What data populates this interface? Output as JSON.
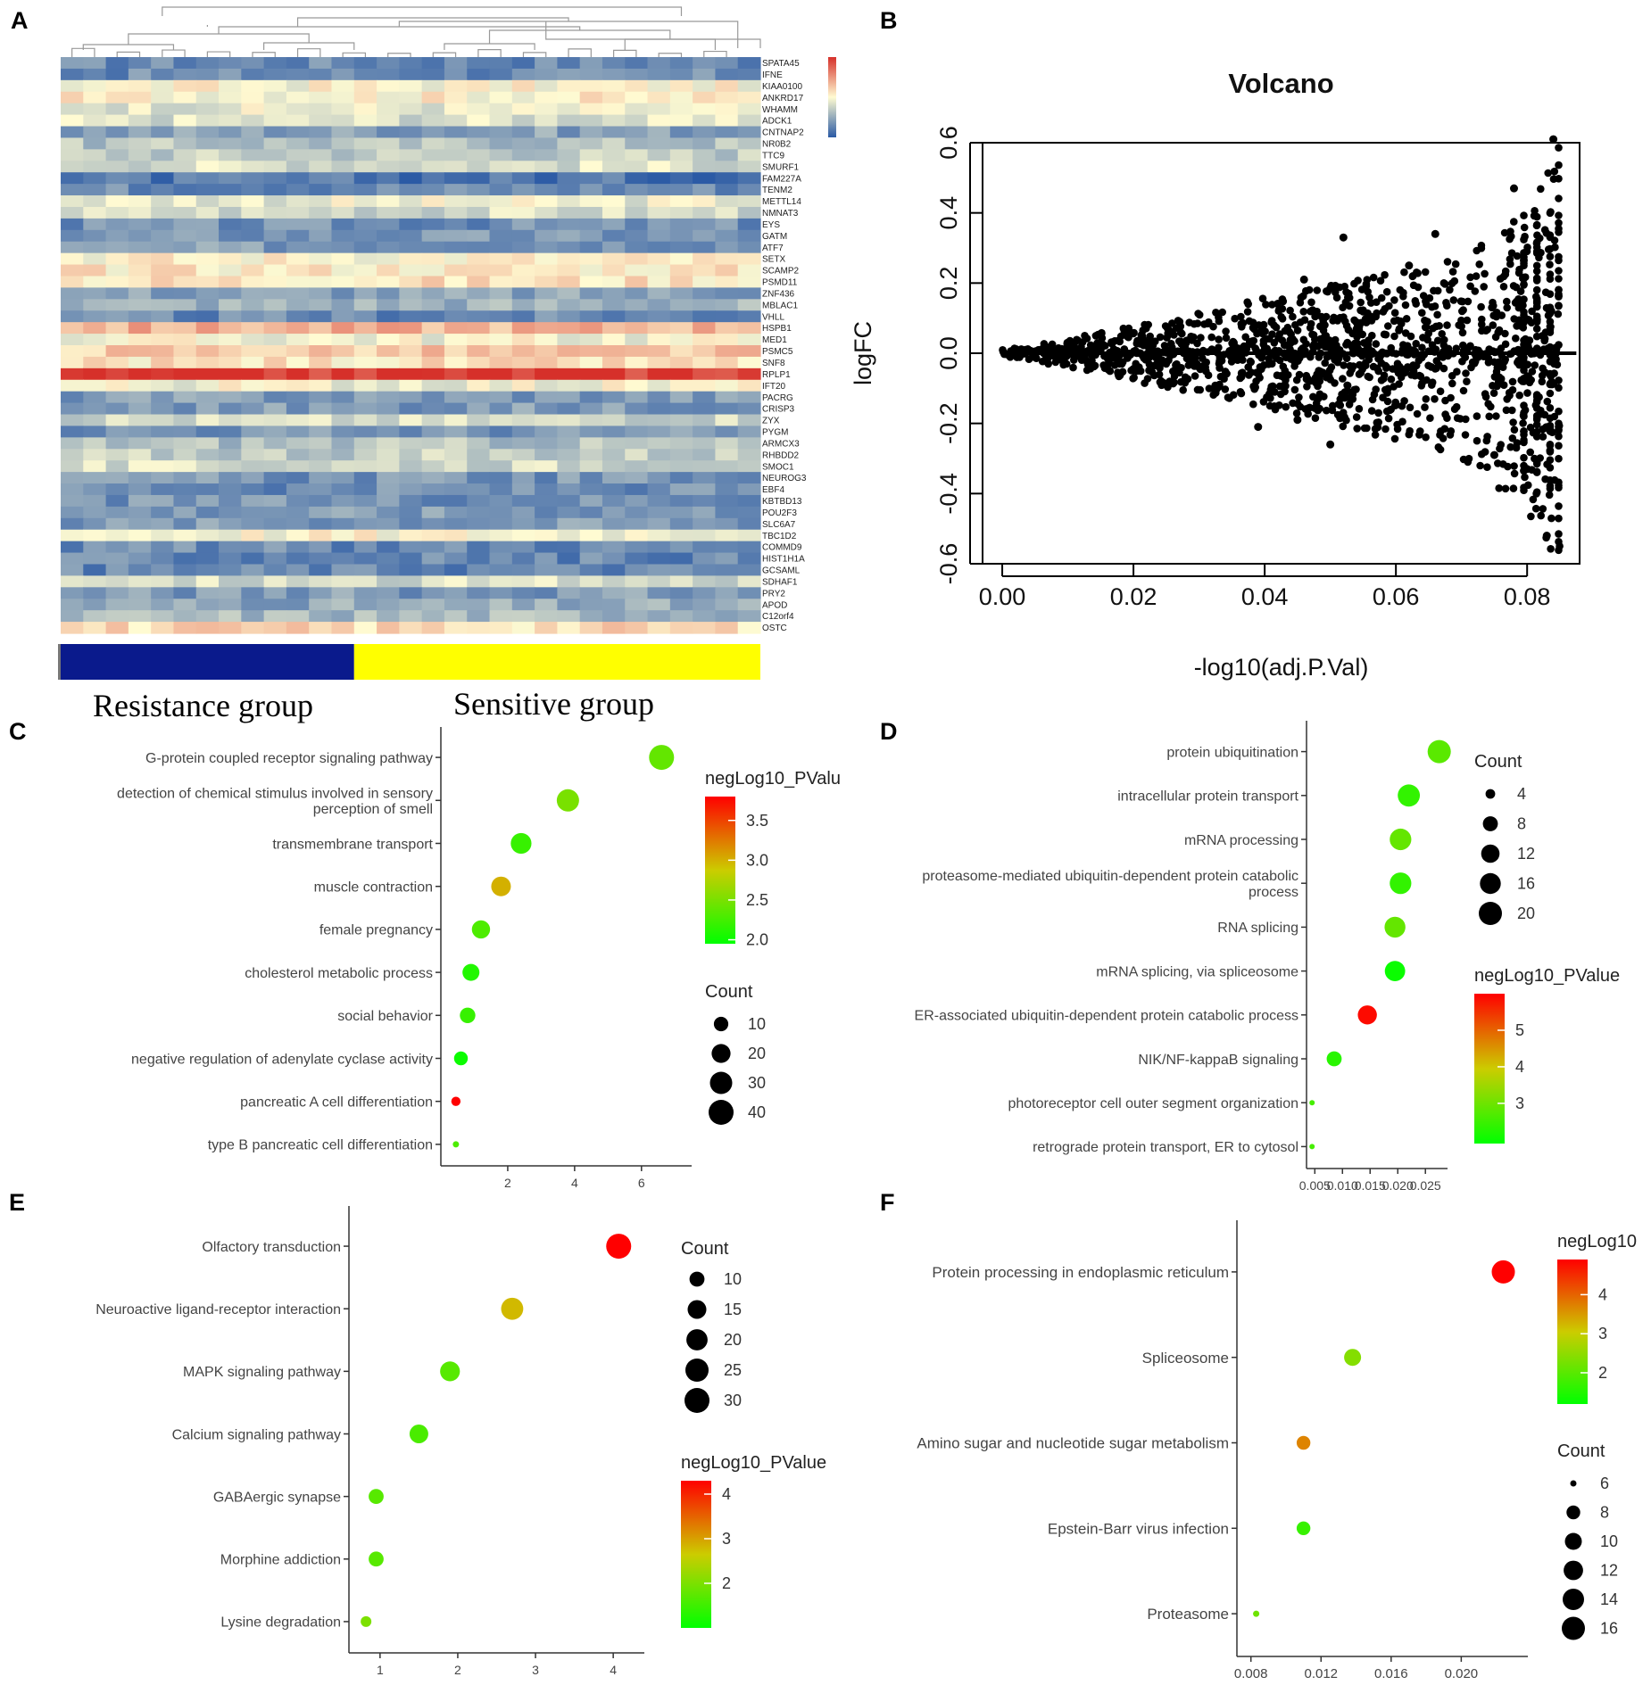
{
  "panel_labels": {
    "A": "A",
    "B": "B",
    "C": "C",
    "D": "D",
    "E": "E",
    "F": "F"
  },
  "group_labels": {
    "resistance": "Resistance group",
    "sensitive": "Sensitive group"
  },
  "colors": {
    "heat_low": "#2b5aa5",
    "heat_mid": "#fffbd2",
    "heat_high": "#d6302a",
    "resistance_bar": "#0a1a8c",
    "sensitive_bar": "#ffff00",
    "grad_low": "#00ff00",
    "grad_mid": "#cccc00",
    "grad_high": "#ff0000"
  },
  "chart_data": [
    {
      "panel": "A",
      "type": "heatmap",
      "genes": [
        "SPATA45",
        "IFNE",
        "KIAA0100",
        "ANKRD17",
        "WHAMM",
        "ADCK1",
        "CNTNAP2",
        "NR0B2",
        "TTC9",
        "SMURF1",
        "FAM227A",
        "TENM2",
        "METTL14",
        "NMNAT3",
        "EYS",
        "GATM",
        "ATF7",
        "SETX",
        "SCAMP2",
        "PSMD11",
        "ZNF436",
        "MBLAC1",
        "VHLL",
        "HSPB1",
        "MED1",
        "PSMC5",
        "SNF8",
        "RPLP1",
        "IFT20",
        "PACRG",
        "CRISP3",
        "ZYX",
        "PYGM",
        "ARMCX3",
        "RHBDD2",
        "SMOC1",
        "NEUROG3",
        "EBF4",
        "KBTBD13",
        "POU2F3",
        "SLC6A7",
        "TBC1D2",
        "COMMD9",
        "HIST1H1A",
        "GCSAML",
        "SDHAF1",
        "PRY2",
        "APOD",
        "C12orf4",
        "OSTC"
      ],
      "row_levels": [
        0.15,
        0.15,
        0.5,
        0.52,
        0.45,
        0.42,
        0.22,
        0.32,
        0.36,
        0.42,
        0.08,
        0.16,
        0.46,
        0.4,
        0.16,
        0.18,
        0.2,
        0.52,
        0.54,
        0.56,
        0.22,
        0.28,
        0.14,
        0.68,
        0.48,
        0.62,
        0.55,
        0.97,
        0.48,
        0.2,
        0.2,
        0.4,
        0.18,
        0.32,
        0.36,
        0.4,
        0.18,
        0.16,
        0.18,
        0.2,
        0.2,
        0.5,
        0.15,
        0.14,
        0.14,
        0.4,
        0.2,
        0.24,
        0.3,
        0.58
      ],
      "columns": 31,
      "groups": [
        {
          "name": "Resistance group",
          "columns": 13
        },
        {
          "name": "Sensitive group",
          "columns": 18
        }
      ],
      "color_scale": "blue-yellow-red"
    },
    {
      "panel": "B",
      "type": "scatter",
      "title": "Volcano",
      "xlabel": "-log10(adj.P.Val)",
      "ylabel": "logFC",
      "xlim": [
        -0.003,
        0.088
      ],
      "ylim": [
        -0.6,
        0.6
      ],
      "xticks": [
        "0.00",
        "0.02",
        "0.04",
        "0.06",
        "0.08"
      ],
      "yticks": [
        "-0.6",
        "-0.4",
        "-0.2",
        "0.0",
        "0.2",
        "0.4",
        "0.6"
      ],
      "xtick_values": [
        0,
        0.02,
        0.04,
        0.06,
        0.08
      ],
      "ytick_values": [
        -0.6,
        -0.4,
        -0.2,
        0,
        0.2,
        0.4,
        0.6
      ],
      "envelope_x": [
        0,
        0.01,
        0.02,
        0.03,
        0.04,
        0.05,
        0.06,
        0.07,
        0.08,
        0.085
      ],
      "envelope_upper": [
        0.01,
        0.04,
        0.08,
        0.12,
        0.16,
        0.2,
        0.24,
        0.28,
        0.4,
        0.6
      ],
      "envelope_lower": [
        -0.01,
        -0.04,
        -0.08,
        -0.12,
        -0.16,
        -0.2,
        -0.25,
        -0.3,
        -0.45,
        -0.6
      ],
      "outliers": [
        {
          "x": 0.052,
          "y": 0.33
        },
        {
          "x": 0.066,
          "y": 0.34
        },
        {
          "x": 0.062,
          "y": 0.25
        },
        {
          "x": 0.046,
          "y": 0.21
        },
        {
          "x": 0.078,
          "y": 0.47
        },
        {
          "x": 0.045,
          "y": -0.19
        },
        {
          "x": 0.05,
          "y": -0.26
        },
        {
          "x": 0.039,
          "y": -0.21
        },
        {
          "x": 0.075,
          "y": -0.29
        },
        {
          "x": 0.083,
          "y": -0.52
        },
        {
          "x": 0.084,
          "y": 0.61
        },
        {
          "x": 0.08,
          "y": -0.33
        }
      ]
    },
    {
      "panel": "C",
      "type": "scatter",
      "subtype": "dotplot",
      "categories": [
        "G-protein coupled receptor signaling pathway",
        "detection of chemical stimulus involved in sensory perception of smell",
        "transmembrane transport",
        "muscle contraction",
        "female pregnancy",
        "cholesterol metabolic process",
        "social behavior",
        "negative regulation of adenylate cyclase activity",
        "pancreatic A cell differentiation",
        "type B pancreatic cell differentiation"
      ],
      "category_lines": [
        [
          "G-protein coupled receptor signaling pathway"
        ],
        [
          "detection of chemical stimulus involved in sensory",
          "perception of smell"
        ],
        [
          "transmembrane transport"
        ],
        [
          "muscle contraction"
        ],
        [
          "female pregnancy"
        ],
        [
          "cholesterol metabolic process"
        ],
        [
          "social behavior"
        ],
        [
          "negative regulation of adenylate cyclase activity"
        ],
        [
          "pancreatic A cell differentiation"
        ],
        [
          "type B pancreatic cell differentiation"
        ]
      ],
      "x": [
        6.6,
        3.8,
        2.4,
        1.8,
        1.2,
        0.9,
        0.8,
        0.6,
        0.45,
        0.45
      ],
      "count": [
        40,
        30,
        25,
        22,
        18,
        15,
        12,
        9,
        4,
        3
      ],
      "negLog10_PValue": [
        2.4,
        2.5,
        2.2,
        3.0,
        2.3,
        2.1,
        2.2,
        2.0,
        3.8,
        2.3
      ],
      "xlim": [
        0,
        7.5
      ],
      "xticks": [
        "2",
        "4",
        "6"
      ],
      "xtick_values": [
        2,
        4,
        6
      ],
      "color_legend": {
        "title": "negLog10_PValu",
        "ticks": [
          "3.5",
          "3.0",
          "2.5",
          "2.0"
        ],
        "tick_values": [
          3.5,
          3.0,
          2.5,
          2.0
        ],
        "min": 1.95,
        "max": 3.8
      },
      "size_legend": {
        "title": "Count",
        "ticks": [
          "10",
          "20",
          "30",
          "40"
        ],
        "tick_values": [
          10,
          20,
          30,
          40
        ]
      },
      "size_range": [
        3,
        40
      ]
    },
    {
      "panel": "D",
      "type": "scatter",
      "subtype": "dotplot",
      "categories": [
        "protein ubiquitination",
        "intracellular protein transport",
        "mRNA processing",
        "proteasome-mediated ubiquitin-dependent protein catabolic process",
        "RNA splicing",
        "mRNA splicing, via spliceosome",
        "ER-associated ubiquitin-dependent protein catabolic process",
        "NIK/NF-kappaB signaling",
        "photoreceptor cell outer segment organization",
        "retrograde protein transport, ER to cytosol"
      ],
      "category_lines": [
        [
          "protein ubiquitination"
        ],
        [
          "intracellular protein transport"
        ],
        [
          "mRNA processing"
        ],
        [
          "proteasome-mediated ubiquitin-dependent protein catabolic",
          "process"
        ],
        [
          "RNA splicing"
        ],
        [
          "mRNA splicing, via spliceosome"
        ],
        [
          "ER-associated ubiquitin-dependent protein catabolic process"
        ],
        [
          "NIK/NF-kappaB signaling"
        ],
        [
          "photoreceptor cell outer segment organization"
        ],
        [
          "retrograde protein transport, ER to cytosol"
        ]
      ],
      "x": [
        0.0275,
        0.022,
        0.0205,
        0.0205,
        0.0195,
        0.0195,
        0.0145,
        0.0085,
        0.0045,
        0.0045
      ],
      "count": [
        20,
        18,
        17,
        17,
        16,
        15,
        13,
        8,
        3,
        3
      ],
      "negLog10_PValue": [
        2.8,
        2.4,
        2.9,
        2.4,
        2.9,
        2.0,
        5.9,
        2.3,
        2.6,
        2.6
      ],
      "xlim": [
        0.0035,
        0.029
      ],
      "xticks": [
        "0.005",
        "0.010",
        "0.015",
        "0.020",
        "0.025"
      ],
      "xtick_values": [
        0.005,
        0.01,
        0.015,
        0.02,
        0.025
      ],
      "color_legend": {
        "title": "negLog10_PValue",
        "ticks": [
          "5",
          "4",
          "3"
        ],
        "tick_values": [
          5,
          4,
          3
        ],
        "min": 1.9,
        "max": 6.0
      },
      "size_legend": {
        "title": "Count",
        "ticks": [
          "4",
          "8",
          "12",
          "16",
          "20"
        ],
        "tick_values": [
          4,
          8,
          12,
          16,
          20
        ]
      },
      "size_range": [
        3,
        20
      ]
    },
    {
      "panel": "E",
      "type": "scatter",
      "subtype": "dotplot",
      "categories": [
        "Olfactory transduction",
        "Neuroactive ligand-receptor interaction",
        "MAPK signaling pathway",
        "Calcium signaling pathway",
        "GABAergic synapse",
        "Morphine addiction",
        "Lysine degradation"
      ],
      "category_lines": [
        [
          "Olfactory transduction"
        ],
        [
          "Neuroactive ligand-receptor interaction"
        ],
        [
          "MAPK signaling pathway"
        ],
        [
          "Calcium signaling pathway"
        ],
        [
          "GABAergic synapse"
        ],
        [
          "Morphine addiction"
        ],
        [
          "Lysine degradation"
        ]
      ],
      "x": [
        4.07,
        2.7,
        1.9,
        1.5,
        0.95,
        0.95,
        0.82
      ],
      "count": [
        30,
        22,
        17,
        15,
        10,
        10,
        8
      ],
      "negLog10_PValue": [
        4.3,
        2.8,
        1.7,
        1.6,
        1.7,
        1.7,
        2.0
      ],
      "xlim": [
        0.6,
        4.4
      ],
      "xticks": [
        "1",
        "2",
        "3",
        "4"
      ],
      "xtick_values": [
        1,
        2,
        3,
        4
      ],
      "color_legend": {
        "title": "negLog10_PValue",
        "ticks": [
          "4",
          "3",
          "2"
        ],
        "tick_values": [
          4,
          3,
          2
        ],
        "min": 1.0,
        "max": 4.3
      },
      "size_legend": {
        "title": "Count",
        "ticks": [
          "10",
          "15",
          "20",
          "25",
          "30"
        ],
        "tick_values": [
          10,
          15,
          20,
          25,
          30
        ]
      },
      "size_range": [
        8,
        30
      ]
    },
    {
      "panel": "F",
      "type": "scatter",
      "subtype": "dotplot",
      "categories": [
        "Protein processing in endoplasmic reticulum",
        "Spliceosome",
        "Amino sugar and nucleotide sugar metabolism",
        "Epstein-Barr virus infection",
        "Proteasome"
      ],
      "category_lines": [
        [
          "Protein processing in endoplasmic reticulum"
        ],
        [
          "Spliceosome"
        ],
        [
          "Amino sugar and nucleotide sugar metabolism"
        ],
        [
          "Epstein-Barr virus infection"
        ],
        [
          "Proteasome"
        ]
      ],
      "x": [
        0.0224,
        0.0138,
        0.011,
        0.011,
        0.0083
      ],
      "count": [
        16,
        10,
        8,
        8,
        6
      ],
      "negLog10_PValue": [
        4.9,
        2.4,
        3.7,
        1.7,
        2.2
      ],
      "xlim": [
        0.0072,
        0.0238
      ],
      "xticks": [
        "0.008",
        "0.012",
        "0.016",
        "0.020"
      ],
      "xtick_values": [
        0.008,
        0.012,
        0.016,
        0.02
      ],
      "color_legend": {
        "title": "negLog10",
        "ticks": [
          "4",
          "3",
          "2"
        ],
        "tick_values": [
          4,
          3,
          2
        ],
        "min": 1.2,
        "max": 4.9
      },
      "size_legend": {
        "title": "Count",
        "ticks": [
          "6",
          "8",
          "10",
          "12",
          "14",
          "16"
        ],
        "tick_values": [
          6,
          8,
          10,
          12,
          14,
          16
        ]
      },
      "size_range": [
        6,
        16
      ]
    }
  ]
}
